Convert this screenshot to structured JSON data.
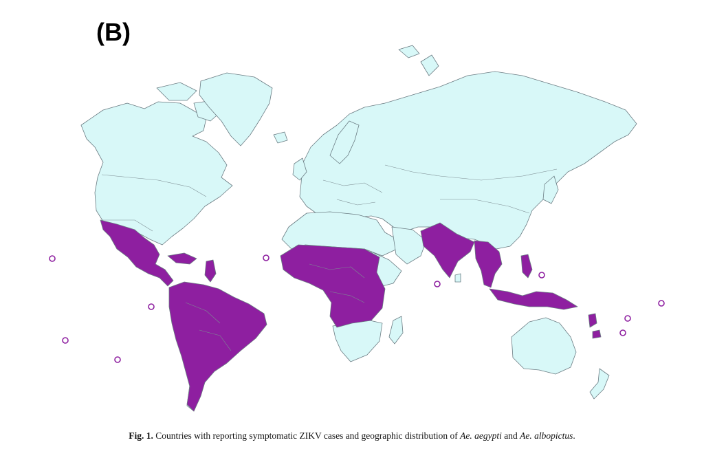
{
  "panel_label": "(B)",
  "caption": {
    "fig_label": "Fig. 1.",
    "text_before": "Countries with reporting symptomatic ZIKV cases and geographic distribution of",
    "species_1": "Ae. aegypti",
    "conjunction": "and",
    "species_2": "Ae. albopictus",
    "period": "."
  },
  "colors": {
    "background": "#ffffff",
    "unaffected_land": "#d8f8f8",
    "zikv_cases": "#8e1fa0",
    "border": "#6a7b82"
  },
  "map": {
    "projection": "world",
    "highlighted_regions": [
      "Mexico",
      "Central America",
      "Caribbean",
      "South America",
      "West Africa",
      "Central Africa",
      "India",
      "Bangladesh",
      "Myanmar",
      "Thailand",
      "Indochina",
      "Philippines",
      "Indonesia",
      "Papua New Guinea",
      "Pacific Islands"
    ],
    "island_markers": [
      "Pacific island",
      "Pacific island",
      "Pacific island",
      "Pacific island",
      "Atlantic island",
      "Indian Ocean island",
      "Pacific island",
      "Pacific island",
      "Pacific island",
      "Pacific island"
    ]
  }
}
